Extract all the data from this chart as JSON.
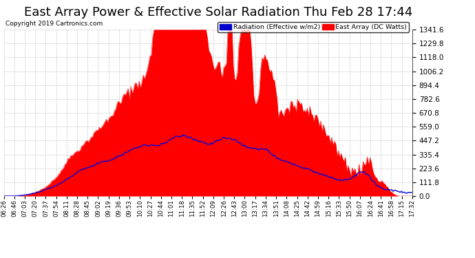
{
  "title": "East Array Power & Effective Solar Radiation Thu Feb 28 17:44",
  "copyright": "Copyright 2019 Cartronics.com",
  "y_ticks": [
    0.0,
    111.8,
    223.6,
    335.4,
    447.2,
    559.0,
    670.8,
    782.6,
    894.4,
    1006.2,
    1118.0,
    1229.8,
    1341.6
  ],
  "x_labels": [
    "06:26",
    "06:46",
    "07:03",
    "07:20",
    "07:37",
    "07:54",
    "08:11",
    "08:28",
    "08:45",
    "09:02",
    "09:19",
    "09:36",
    "09:53",
    "10:10",
    "10:27",
    "10:44",
    "11:01",
    "11:18",
    "11:35",
    "11:52",
    "12:09",
    "12:26",
    "12:43",
    "13:00",
    "13:17",
    "13:34",
    "13:51",
    "14:08",
    "14:25",
    "14:42",
    "14:59",
    "15:16",
    "15:33",
    "15:50",
    "16:07",
    "16:24",
    "16:41",
    "16:58",
    "17:15",
    "17:32"
  ],
  "background_color": "#ffffff",
  "grid_color": "#c8c8c8",
  "title_fontsize": 13,
  "red_color": "#ff0000",
  "blue_color": "#0000dd",
  "y_max": 1341.6,
  "y_min": 0.0,
  "legend_blue_label": "Radiation (Effective w/m2)",
  "legend_red_label": "East Array (DC Watts)"
}
